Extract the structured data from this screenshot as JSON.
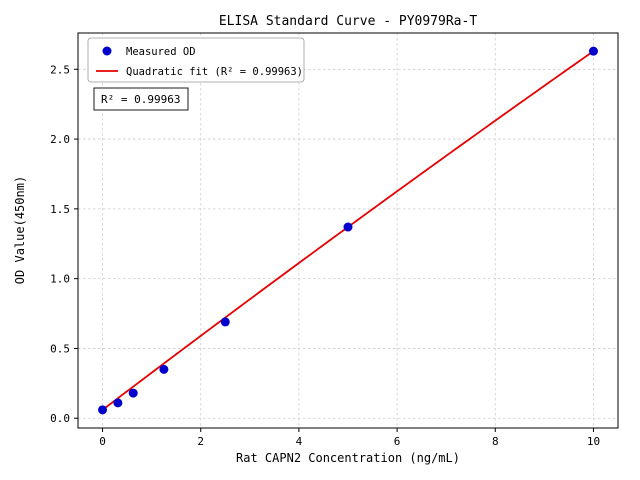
{
  "chart_data": {
    "type": "scatter",
    "title": "ELISA Standard Curve - PY0979Ra-T",
    "xlabel": "Rat CAPN2 Concentration (ng/mL)",
    "ylabel": "OD Value(450nm)",
    "xlim": [
      -0.5,
      10.5
    ],
    "ylim": [
      -0.07,
      2.76
    ],
    "x_ticks": [
      0,
      2,
      4,
      6,
      8,
      10
    ],
    "y_ticks": [
      0.0,
      0.5,
      1.0,
      1.5,
      2.0,
      2.5
    ],
    "grid": true,
    "legend_position": "upper left",
    "annotation": "R² = 0.99963",
    "r_squared": 0.99963,
    "series": [
      {
        "name": "Measured OD",
        "type": "scatter",
        "color": "#0000cd",
        "x": [
          0,
          0.3125,
          0.625,
          1.25,
          2.5,
          5,
          10
        ],
        "y": [
          0.06,
          0.11,
          0.18,
          0.35,
          0.69,
          1.37,
          2.63
        ]
      },
      {
        "name": "Quadratic fit (R² = 0.99963)",
        "type": "line",
        "color": "#e60000",
        "fit": {
          "a": -0.001,
          "b": 0.267,
          "c": 0.06,
          "x_range": [
            0,
            10
          ]
        }
      }
    ]
  }
}
